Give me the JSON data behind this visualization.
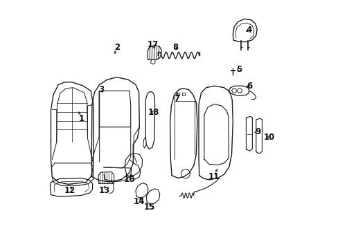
{
  "bg_color": "#ffffff",
  "line_color": "#1a1a1a",
  "lw": 0.85,
  "font_size": 8.5,
  "labels": {
    "1": {
      "lpos": [
        0.148,
        0.525
      ],
      "ppos": [
        0.133,
        0.56
      ]
    },
    "2": {
      "lpos": [
        0.29,
        0.81
      ],
      "ppos": [
        0.278,
        0.775
      ]
    },
    "3": {
      "lpos": [
        0.228,
        0.64
      ],
      "ppos": [
        0.238,
        0.62
      ]
    },
    "4": {
      "lpos": [
        0.82,
        0.88
      ],
      "ppos": [
        0.8,
        0.868
      ]
    },
    "5": {
      "lpos": [
        0.78,
        0.72
      ],
      "ppos": [
        0.762,
        0.718
      ]
    },
    "6": {
      "lpos": [
        0.822,
        0.655
      ],
      "ppos": [
        0.8,
        0.65
      ]
    },
    "7": {
      "lpos": [
        0.53,
        0.605
      ],
      "ppos": [
        0.533,
        0.638
      ]
    },
    "8": {
      "lpos": [
        0.525,
        0.81
      ],
      "ppos": [
        0.53,
        0.792
      ]
    },
    "9": {
      "lpos": [
        0.855,
        0.47
      ],
      "ppos": [
        0.84,
        0.468
      ]
    },
    "10": {
      "lpos": [
        0.9,
        0.45
      ],
      "ppos": [
        0.882,
        0.45
      ]
    },
    "11": {
      "lpos": [
        0.68,
        0.29
      ],
      "ppos": [
        0.695,
        0.33
      ]
    },
    "12": {
      "lpos": [
        0.1,
        0.235
      ],
      "ppos": [
        0.115,
        0.258
      ]
    },
    "13": {
      "lpos": [
        0.24,
        0.235
      ],
      "ppos": [
        0.242,
        0.263
      ]
    },
    "14": {
      "lpos": [
        0.38,
        0.19
      ],
      "ppos": [
        0.388,
        0.215
      ]
    },
    "15": {
      "lpos": [
        0.42,
        0.168
      ],
      "ppos": [
        0.427,
        0.193
      ]
    },
    "16": {
      "lpos": [
        0.34,
        0.28
      ],
      "ppos": [
        0.352,
        0.31
      ]
    },
    "17": {
      "lpos": [
        0.435,
        0.82
      ],
      "ppos": [
        0.442,
        0.796
      ]
    },
    "18": {
      "lpos": [
        0.438,
        0.548
      ],
      "ppos": [
        0.422,
        0.56
      ]
    }
  }
}
